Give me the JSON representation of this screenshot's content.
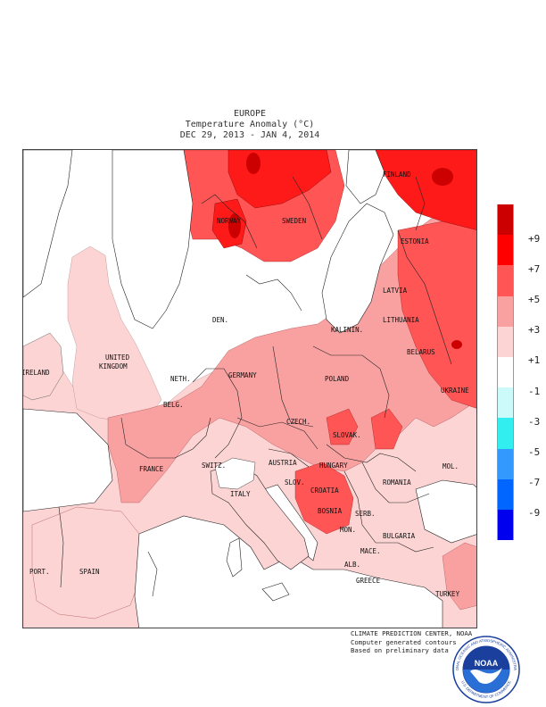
{
  "header": {
    "region": "EUROPE",
    "variable": "Temperature Anomaly (°C)",
    "period": "DEC 29, 2013 - JAN  4, 2014"
  },
  "legend": {
    "items": [
      {
        "label": "+9",
        "color": "#cc0000"
      },
      {
        "label": "+7",
        "color": "#ff0000"
      },
      {
        "label": "+5",
        "color": "#ff5555"
      },
      {
        "label": "+3",
        "color": "#f9a1a1"
      },
      {
        "label": "+1",
        "color": "#fdd4d4"
      },
      {
        "label": "-1",
        "color": "#ffffff"
      },
      {
        "label": "-3",
        "color": "#ccfafa"
      },
      {
        "label": "-5",
        "color": "#33eeee"
      },
      {
        "label": "-7",
        "color": "#3399ff"
      },
      {
        "label": "-9",
        "color": "#0066ff"
      }
    ],
    "extra_color": "#0000ee"
  },
  "map": {
    "labels": {
      "finland": "FINLAND",
      "norway": "NORWAY",
      "sweden": "SWEDEN",
      "estonia": "ESTONIA",
      "latvia": "LATVIA",
      "lithuania": "LITHUANIA",
      "den": "DEN.",
      "kalinin": "KALININ.",
      "belarus": "BELARUS",
      "ireland": "IRELAND",
      "uk1": "UNITED",
      "uk2": "KINGDOM",
      "neth": "NETH.",
      "germany": "GERMANY",
      "poland": "POLAND",
      "belg": "BELG.",
      "czech": "CZECH.",
      "ukraine": "UKRAINE",
      "slovak": "SLOVAK.",
      "france": "FRANCE",
      "switz": "SWITZ.",
      "austria": "AUSTRIA",
      "hungary": "HUNGARY",
      "mol": "MOL.",
      "slov": "SLOV.",
      "croatia": "CROATIA",
      "romania": "ROMANIA",
      "italy": "ITALY",
      "bosnia": "BOSNIA",
      "serb": "SERB.",
      "mon": "MON.",
      "bulgaria": "BULGARIA",
      "mace": "MACE.",
      "port": "PORT.",
      "spain": "SPAIN",
      "alb": "ALB.",
      "greece": "GREECE",
      "turkey": "TURKEY"
    }
  },
  "credits": {
    "line1": "CLIMATE PREDICTION CENTER, NOAA",
    "line2": "Computer generated contours",
    "line3": "Based on preliminary data"
  },
  "logo": {
    "center_text": "NOAA",
    "ring_top": "NATIONAL OCEANIC AND ATMOSPHERIC ADMINISTRATION",
    "ring_bottom": "U.S. DEPARTMENT OF COMMERCE",
    "ring_color": "#1a3f9c",
    "wave_color": "#2a6fd6"
  }
}
